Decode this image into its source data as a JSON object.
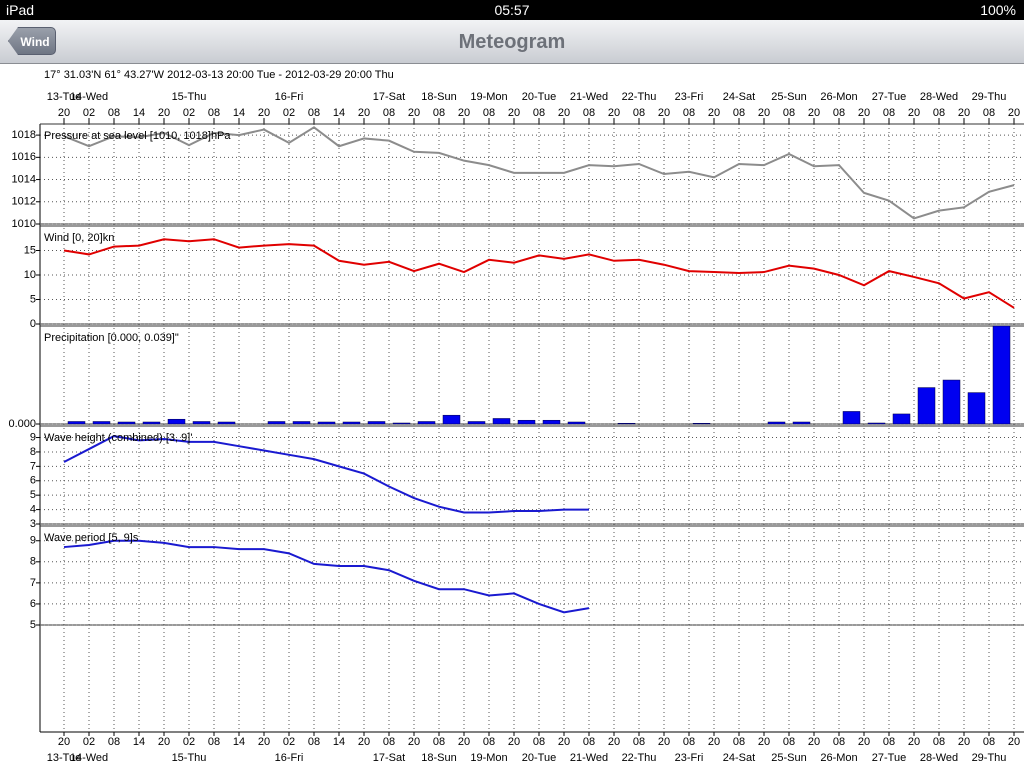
{
  "status_bar": {
    "device": "iPad",
    "time": "05:57",
    "battery": "100%"
  },
  "nav_bar": {
    "back_button": "Wind",
    "title": "Meteogram"
  },
  "header": "17° 31.03'N 61° 43.27'W   2012-03-13 20:00 Tue - 2012-03-29 20:00 Thu",
  "time_axis": {
    "hours": [
      "20",
      "02",
      "08",
      "14",
      "20",
      "02",
      "08",
      "14",
      "20",
      "02",
      "08",
      "14",
      "20",
      "08",
      "20",
      "08",
      "20",
      "08",
      "20",
      "08",
      "20",
      "08",
      "20",
      "08",
      "20",
      "08",
      "20",
      "08",
      "20",
      "08",
      "20",
      "08",
      "20",
      "08",
      "20",
      "08",
      "20",
      "08",
      "20"
    ],
    "days": [
      "13-Tue",
      "14-Wed",
      null,
      null,
      null,
      "15-Thu",
      null,
      null,
      null,
      "16-Fri",
      null,
      null,
      null,
      "17-Sat",
      null,
      "18-Sun",
      null,
      "19-Mon",
      null,
      "20-Tue",
      null,
      "21-Wed",
      null,
      "22-Thu",
      null,
      "23-Fri",
      null,
      "24-Sat",
      null,
      "25-Sun",
      null,
      "26-Mon",
      null,
      "27-Tue",
      null,
      "28-Wed",
      null,
      "29-Thu",
      null
    ]
  },
  "chart_data": [
    {
      "type": "line",
      "title": "Pressure at sea level [1010, 1018]hPa",
      "color": "#8c8c8c",
      "ylim": [
        1010,
        1019
      ],
      "yticks": [
        1010,
        1012,
        1014,
        1016,
        1018
      ],
      "grid": true,
      "values": [
        1017.9,
        1017.0,
        1017.9,
        1017.8,
        1018.2,
        1017.1,
        1018.2,
        1018.0,
        1018.5,
        1017.3,
        1018.7,
        1017.0,
        1017.7,
        1017.5,
        1016.5,
        1016.4,
        1015.7,
        1015.3,
        1014.6,
        1014.6,
        1014.6,
        1015.3,
        1015.2,
        1015.4,
        1014.5,
        1014.7,
        1014.2,
        1015.4,
        1015.3,
        1016.3,
        1015.2,
        1015.3,
        1012.8,
        1012.1,
        1010.5,
        1011.2,
        1011.5,
        1012.9,
        1013.5
      ]
    },
    {
      "type": "line",
      "title": "Wind [0, 20]kn",
      "color": "#e00000",
      "ylim": [
        0,
        20
      ],
      "yticks": [
        0,
        5,
        10,
        15
      ],
      "grid": true,
      "values": [
        15,
        14.2,
        15.8,
        16,
        17.3,
        16.9,
        17.3,
        15.6,
        16,
        16.3,
        16,
        12.9,
        12.1,
        12.7,
        10.8,
        12.3,
        10.6,
        13.1,
        12.5,
        14,
        13.3,
        14.2,
        12.9,
        13.1,
        12.1,
        10.8,
        10.6,
        10.4,
        10.6,
        11.9,
        11.3,
        10,
        7.9,
        10.8,
        9.6,
        8.3,
        5.2,
        6.5,
        3.3
      ]
    },
    {
      "type": "bar",
      "title": "Precipitation [0.000, 0.039]\"",
      "color": "#0000f0",
      "ylim": [
        0,
        0.039
      ],
      "yticks": [
        {
          "value": 0,
          "label": "0.000"
        }
      ],
      "grid": true,
      "values": [
        0.001,
        0.001,
        0.0008,
        0.0008,
        0.0019,
        0.001,
        0.0008,
        0,
        0.001,
        0.001,
        0.0008,
        0.0008,
        0.001,
        0.0004,
        0.001,
        0.0035,
        0.001,
        0.0022,
        0.0015,
        0.0015,
        0.0008,
        0,
        0.0003,
        0,
        0,
        0.0003,
        0,
        0,
        0.0008,
        0.0008,
        0,
        0.005,
        0.0004,
        0.004,
        0.0145,
        0.0175,
        0.0125,
        0.039
      ]
    },
    {
      "type": "line",
      "title": "Wave height (combined) [3, 9]'",
      "color": "#1a1ad0",
      "ylim": [
        3,
        9.8
      ],
      "yticks": [
        3,
        4,
        5,
        6,
        7,
        8,
        9
      ],
      "grid": true,
      "values": [
        7.3,
        8.2,
        9.1,
        8.8,
        8.9,
        8.7,
        8.7,
        8.4,
        8.1,
        7.8,
        7.5,
        7.0,
        6.5,
        5.6,
        4.8,
        4.2,
        3.8,
        3.8,
        3.9,
        3.9,
        4.0,
        4.0,
        null,
        null,
        null,
        null,
        null,
        null,
        null,
        null,
        null,
        null,
        null,
        null,
        null,
        null,
        null,
        null,
        null
      ]
    },
    {
      "type": "line",
      "title": "Wave period [5, 9]s",
      "color": "#1a1ad0",
      "ylim": [
        5,
        9.7
      ],
      "yticks": [
        5,
        6,
        7,
        8,
        9
      ],
      "grid": true,
      "values": [
        8.7,
        8.8,
        9.0,
        9.0,
        8.9,
        8.7,
        8.7,
        8.6,
        8.6,
        8.4,
        7.9,
        7.8,
        7.8,
        7.6,
        7.1,
        6.7,
        6.7,
        6.4,
        6.5,
        6.0,
        5.6,
        5.8,
        null,
        null,
        null,
        null,
        null,
        null,
        null,
        null,
        null,
        null,
        null,
        null,
        null,
        null,
        null,
        null,
        null
      ]
    }
  ]
}
